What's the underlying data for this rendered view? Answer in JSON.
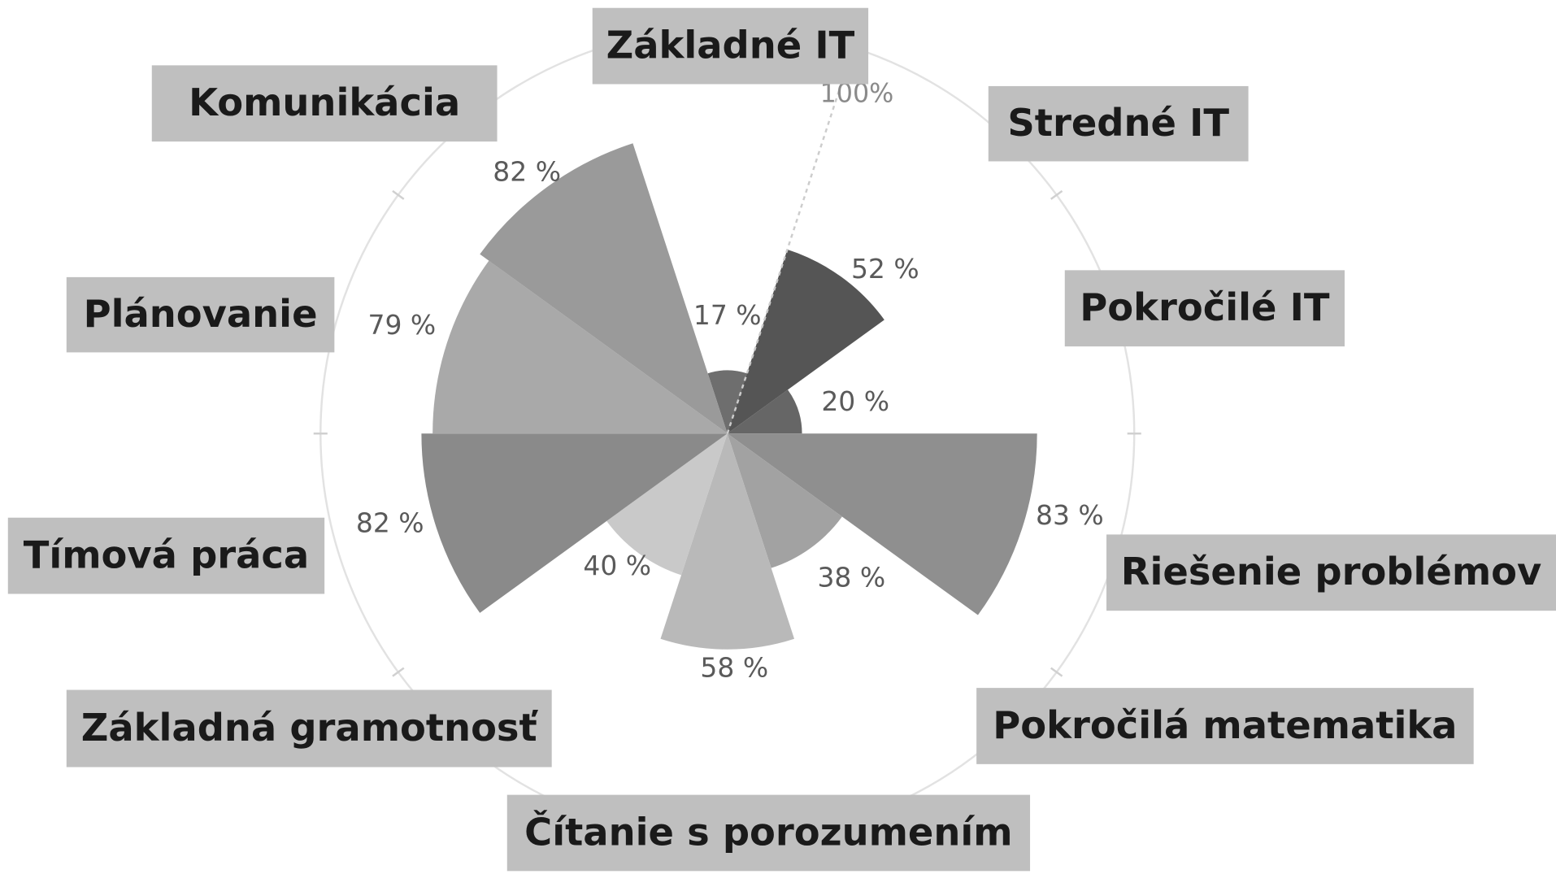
{
  "chart_data": {
    "type": "polar-area",
    "categories": [
      "Základné IT",
      "Stredné IT",
      "Pokročilé IT",
      "Riešenie problémov",
      "Pokročilá matematika",
      "Čítanie s porozumením",
      "Základná gramotnosť",
      "Tímová práca",
      "Plánovanie",
      "Komunikácia"
    ],
    "values": [
      17,
      52,
      20,
      83,
      38,
      58,
      40,
      82,
      79,
      82
    ],
    "value_labels": [
      "17 %",
      "52 %",
      "20 %",
      "83 %",
      "38 %",
      "58 %",
      "40 %",
      "82 %",
      "79 %",
      "82 %"
    ],
    "colors": [
      "#6e6e6e",
      "#555555",
      "#666666",
      "#8f8f8f",
      "#a2a2a2",
      "#b9b9b9",
      "#c9c9c9",
      "#8a8a8a",
      "#a9a9a9",
      "#9a9a9a"
    ],
    "ylim": [
      0,
      100
    ],
    "yticks": [
      {
        "value": 100,
        "label": "100%"
      }
    ]
  }
}
